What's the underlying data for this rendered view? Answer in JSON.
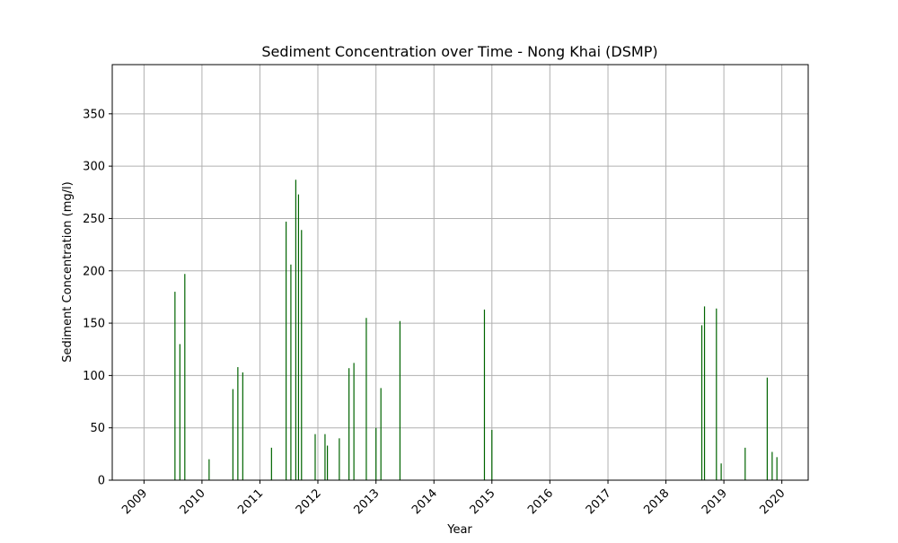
{
  "chart_data": {
    "type": "bar",
    "title": "Sediment Concentration over Time - Nong Khai (DSMP)",
    "xlabel": "Year",
    "ylabel": "Sediment Concentration (mg/l)",
    "xlim": [
      "2008-06-15",
      "2020-06-15"
    ],
    "ylim": [
      0,
      397
    ],
    "x_ticks": [
      "2009",
      "2010",
      "2011",
      "2012",
      "2013",
      "2014",
      "2015",
      "2016",
      "2017",
      "2018",
      "2019",
      "2020"
    ],
    "y_ticks": [
      "0",
      "50",
      "100",
      "150",
      "200",
      "250",
      "300",
      "350"
    ],
    "grid": true,
    "bar_color": "#006400",
    "x": [
      "2009-07-15",
      "2009-08-15",
      "2009-09-15",
      "2010-02-15",
      "2010-07-15",
      "2010-08-15",
      "2010-09-15",
      "2011-03-15",
      "2011-06-15",
      "2011-07-15",
      "2011-08-15",
      "2011-09-01",
      "2011-09-20",
      "2011-12-15",
      "2012-02-15",
      "2012-03-01",
      "2012-05-15",
      "2012-07-15",
      "2012-08-15",
      "2012-11-01",
      "2013-01-01",
      "2013-02-01",
      "2013-06-01",
      "2014-11-15",
      "2015-01-01",
      "2018-08-15",
      "2018-09-01",
      "2018-11-15",
      "2018-12-15",
      "2019-05-15",
      "2019-10-01",
      "2019-11-01",
      "2019-12-01"
    ],
    "values": [
      180,
      130,
      197,
      20,
      87,
      108,
      103,
      31,
      247,
      206,
      287,
      273,
      239,
      44,
      44,
      33,
      40,
      107,
      112,
      155,
      50,
      88,
      152,
      163,
      48,
      148,
      166,
      164,
      16,
      31,
      98,
      27,
      22
    ]
  }
}
